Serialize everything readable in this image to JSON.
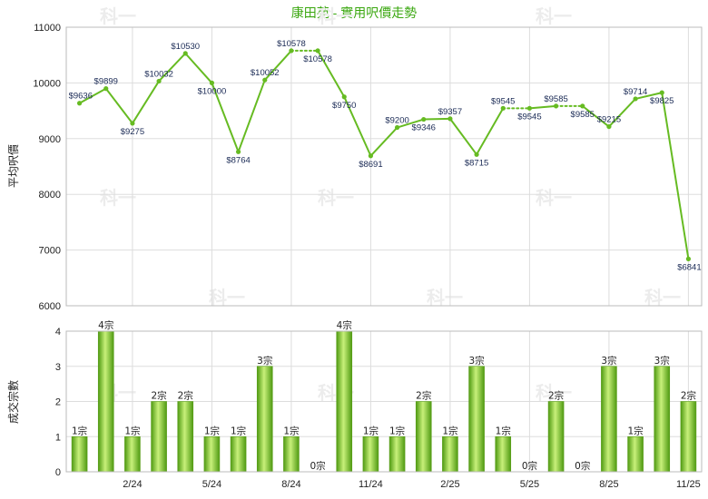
{
  "title": "康田苑 - 實用呎價走勢",
  "watermark": "科一",
  "chart_data": [
    {
      "type": "line",
      "ylabel": "平均呎價",
      "ylim": [
        6000,
        11000
      ],
      "yticks": [
        6000,
        7000,
        8000,
        9000,
        10000,
        11000
      ],
      "color": "#66bb22",
      "points": [
        {
          "value": 9636,
          "label": "$9636"
        },
        {
          "value": 9899,
          "label": "$9899"
        },
        {
          "value": 9275,
          "label": "$9275"
        },
        {
          "value": 10032,
          "label": "$10032"
        },
        {
          "value": 10530,
          "label": "$10530"
        },
        {
          "value": 10000,
          "label": "$10000"
        },
        {
          "value": 8764,
          "label": "$8764"
        },
        {
          "value": 10052,
          "label": "$10052"
        },
        {
          "value": 10578,
          "label": "$10578"
        },
        {
          "value": 10578,
          "label": "$10578"
        },
        {
          "value": 9750,
          "label": "$9750"
        },
        {
          "value": 8691,
          "label": "$8691"
        },
        {
          "value": 9200,
          "label": "$9200"
        },
        {
          "value": 9346,
          "label": "$9346"
        },
        {
          "value": 9357,
          "label": "$9357"
        },
        {
          "value": 8715,
          "label": "$8715"
        },
        {
          "value": 9545,
          "label": "$9545"
        },
        {
          "value": 9545,
          "label": "$9545"
        },
        {
          "value": 9585,
          "label": "$9585"
        },
        {
          "value": 9585,
          "label": "$9585"
        },
        {
          "value": 9215,
          "label": "$9215"
        },
        {
          "value": 9714,
          "label": "$9714"
        },
        {
          "value": 9825,
          "label": "$9825"
        },
        {
          "value": 6841,
          "label": "$6841"
        }
      ],
      "dotted_segments": [
        [
          8,
          9
        ],
        [
          16,
          17
        ],
        [
          18,
          19
        ]
      ]
    },
    {
      "type": "bar",
      "ylabel": "成交宗數",
      "ylim": [
        0,
        4
      ],
      "yticks": [
        0,
        1,
        2,
        3,
        4
      ],
      "categories": [
        "",
        "",
        "2/24",
        "",
        "",
        "5/24",
        "",
        "",
        "8/24",
        "",
        "",
        "11/24",
        "",
        "",
        "2/25",
        "",
        "",
        "5/25",
        "",
        "",
        "8/25",
        "",
        "",
        "11/25"
      ],
      "values": [
        1,
        4,
        1,
        2,
        2,
        1,
        1,
        3,
        1,
        0,
        4,
        1,
        1,
        2,
        1,
        3,
        1,
        0,
        2,
        0,
        3,
        1,
        3,
        2
      ],
      "labels": [
        "1宗",
        "4宗",
        "1宗",
        "2宗",
        "2宗",
        "1宗",
        "1宗",
        "3宗",
        "1宗",
        "0宗",
        "4宗",
        "1宗",
        "1宗",
        "2宗",
        "1宗",
        "3宗",
        "1宗",
        "0宗",
        "2宗",
        "0宗",
        "3宗",
        "1宗",
        "3宗",
        "2宗"
      ]
    }
  ]
}
